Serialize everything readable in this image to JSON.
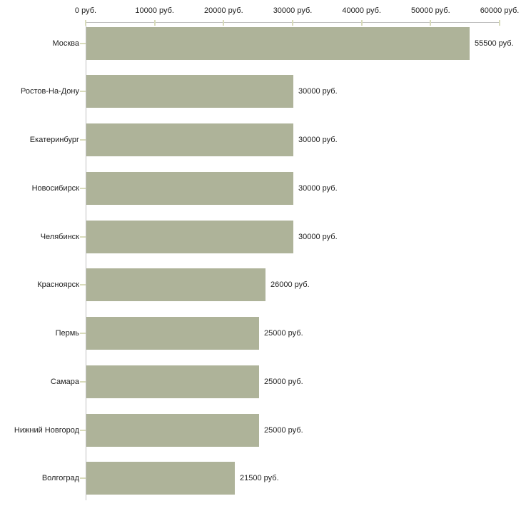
{
  "chart_data": {
    "type": "bar",
    "orientation": "horizontal",
    "title": "",
    "xlabel": "",
    "ylabel": "",
    "grid": "off",
    "legend": "none",
    "categories": [
      "Москва",
      "Ростов-На-Дону",
      "Екатеринбург",
      "Новосибирск",
      "Челябинск",
      "Красноярск",
      "Пермь",
      "Самара",
      "Нижний Новгород",
      "Волгоград"
    ],
    "values": [
      55500,
      30000,
      30000,
      30000,
      30000,
      26000,
      25000,
      25000,
      25000,
      21500
    ],
    "value_labels": [
      "55500 руб.",
      "30000 руб.",
      "30000 руб.",
      "30000 руб.",
      "30000 руб.",
      "26000 руб.",
      "25000 руб.",
      "25000 руб.",
      "25000 руб.",
      "21500 руб."
    ],
    "x_axis": {
      "position": "top",
      "range": [
        0,
        60000
      ],
      "ticks": [
        0,
        10000,
        20000,
        30000,
        40000,
        50000,
        60000
      ],
      "tick_labels": [
        "0 руб.",
        "10000 руб.",
        "20000 руб.",
        "30000 руб.",
        "40000 руб.",
        "50000 руб.",
        "60000 руб."
      ]
    },
    "colors": {
      "bar": "#aeb399",
      "axis_line": "#bfbfbf",
      "tick_mark": "#d8dbba",
      "text": "#222222",
      "background": "#ffffff"
    }
  }
}
